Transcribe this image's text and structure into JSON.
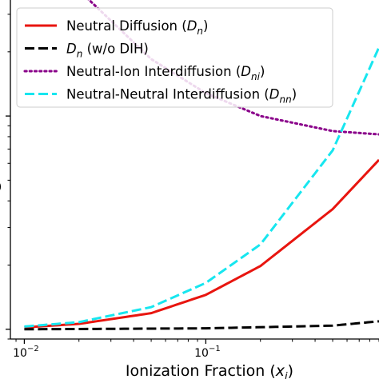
{
  "chart_data": {
    "type": "line",
    "xlabel": "Ionization Fraction (x_i)",
    "x_scale": "log",
    "xlim": [
      0.00838,
      0.9
    ],
    "y_scale": "log",
    "ylim": [
      0.0009,
      0.035
    ],
    "y_tick_label": "0",
    "x_ticks": [
      {
        "value": 0.01,
        "base": "10",
        "exp": "−2"
      },
      {
        "value": 0.1,
        "base": "10",
        "exp": "−1"
      }
    ],
    "grid": false,
    "legend_position": "top-left",
    "series": [
      {
        "name_base": "Neutral Diffusion (",
        "name_sym": "D",
        "name_sub": "n",
        "name_end": ")",
        "color": "#e8150f",
        "style": "solid",
        "x": [
          0.01,
          0.02,
          0.05,
          0.1,
          0.2,
          0.5,
          0.9
        ],
        "y": [
          0.00102,
          0.00106,
          0.00119,
          0.00145,
          0.00198,
          0.00366,
          0.00623
        ]
      },
      {
        "name_base": "",
        "name_sym": "D",
        "name_sub": "n",
        "name_end": " (w/o DIH)",
        "color": "#000000",
        "style": "dashed",
        "x": [
          0.01,
          0.1,
          0.5,
          0.9
        ],
        "y": [
          0.001,
          0.00101,
          0.00104,
          0.00109
        ]
      },
      {
        "name_base": "Neutral-Ion Interdiffusion (",
        "name_sym": "D",
        "name_sub": "ni",
        "name_end": ")",
        "color": "#8a008a",
        "style": "dotted",
        "x": [
          0.01,
          0.022,
          0.05,
          0.1,
          0.2,
          0.5,
          0.9
        ],
        "y": [
          0.1,
          0.036,
          0.0185,
          0.0128,
          0.01,
          0.0085,
          0.0082
        ]
      },
      {
        "name_base": "Neutral-Neutral Interdiffusion (",
        "name_sym": "D",
        "name_sub": "nn",
        "name_end": ")",
        "color": "#17e6ef",
        "style": "dashed",
        "x": [
          0.01,
          0.02,
          0.05,
          0.1,
          0.2,
          0.5,
          0.9
        ],
        "y": [
          0.00103,
          0.00108,
          0.00127,
          0.00165,
          0.0025,
          0.0069,
          0.021
        ]
      }
    ]
  }
}
